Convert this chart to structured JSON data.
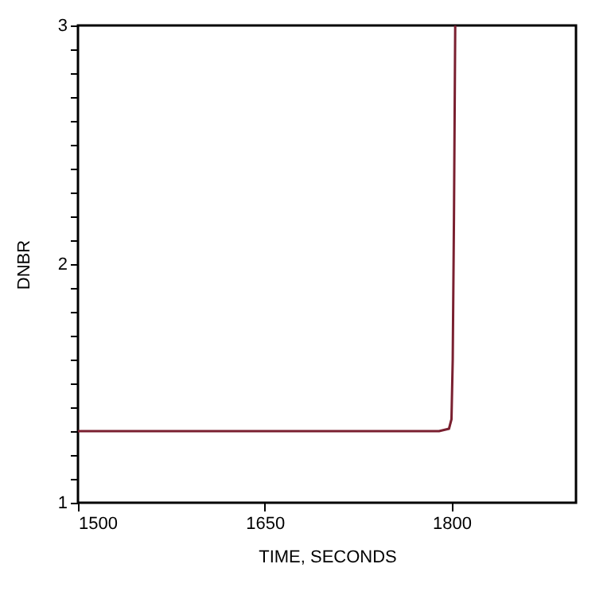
{
  "chart_data": {
    "type": "line",
    "xlabel": "TIME, SECONDS",
    "ylabel": "DNBR",
    "x": [
      1500,
      1790,
      1798,
      1800,
      1801,
      1802,
      1803
    ],
    "series": [
      {
        "color": "#7a2030",
        "values": [
          1.3,
          1.3,
          1.31,
          1.35,
          1.6,
          2.2,
          3.0
        ]
      }
    ],
    "xlim": [
      1500,
      1900
    ],
    "xticks": [
      1500,
      1650,
      1800
    ],
    "ylim": [
      1,
      3
    ],
    "yticks": [
      1,
      {
        "value": 1.1,
        "label": null
      },
      {
        "value": 1.2,
        "label": null
      },
      {
        "value": 1.3,
        "label": null
      },
      {
        "value": 1.4,
        "label": null
      },
      {
        "value": 1.5,
        "label": null
      },
      {
        "value": 1.6,
        "label": null
      },
      {
        "value": 1.7,
        "label": null
      },
      {
        "value": 1.8,
        "label": null
      },
      {
        "value": 1.9,
        "label": null
      },
      2,
      {
        "value": 2.1,
        "label": null
      },
      {
        "value": 2.2,
        "label": null
      },
      {
        "value": 2.3,
        "label": null
      },
      {
        "value": 2.4,
        "label": null
      },
      {
        "value": 2.5,
        "label": null
      },
      {
        "value": 2.6,
        "label": null
      },
      {
        "value": 2.7,
        "label": null
      },
      {
        "value": 2.8,
        "label": null
      },
      {
        "value": 2.9,
        "label": null
      },
      3
    ],
    "grid": false,
    "marker": "none",
    "line_style": "solid"
  }
}
